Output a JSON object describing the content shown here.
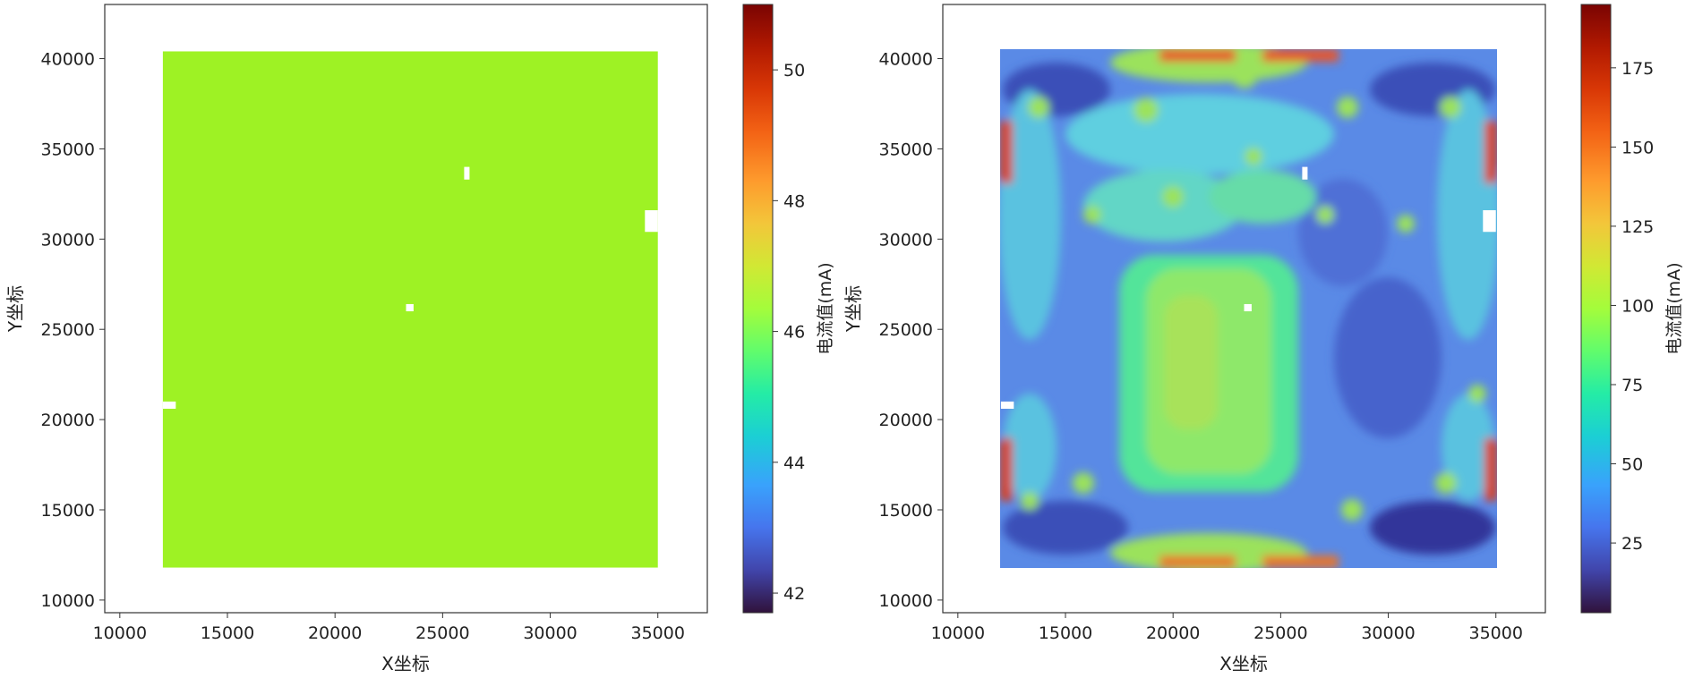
{
  "chart_data": [
    {
      "type": "heatmap",
      "title": "",
      "xlabel": "X坐标",
      "ylabel": "Y坐标",
      "xlim": [
        9300,
        37300
      ],
      "ylim": [
        9300,
        43000
      ],
      "xticks": [
        10000,
        15000,
        20000,
        25000,
        30000,
        35000
      ],
      "yticks": [
        10000,
        15000,
        20000,
        25000,
        30000,
        35000,
        40000
      ],
      "data_extent": {
        "x": [
          12000,
          35000
        ],
        "y": [
          11800,
          40400
        ]
      },
      "fill_value": 46.6,
      "fill_color": "#9ef224",
      "gaps": [
        {
          "x": [
            26000,
            26250
          ],
          "y": [
            33300,
            34000
          ]
        },
        {
          "x": [
            23300,
            23650
          ],
          "y": [
            26000,
            26400
          ]
        },
        {
          "x": [
            12000,
            12600
          ],
          "y": [
            20600,
            21000
          ]
        },
        {
          "x": [
            34400,
            35000
          ],
          "y": [
            30400,
            31600
          ]
        }
      ],
      "colorbar": {
        "label": "电流值(mA)",
        "range": [
          41.7,
          51.0
        ],
        "ticks": [
          42,
          44,
          46,
          48,
          50
        ]
      }
    },
    {
      "type": "heatmap",
      "title": "",
      "xlabel": "X坐标",
      "ylabel": "Y坐标",
      "xlim": [
        9300,
        37300
      ],
      "ylim": [
        9300,
        43000
      ],
      "xticks": [
        10000,
        15000,
        20000,
        25000,
        30000,
        35000
      ],
      "yticks": [
        10000,
        15000,
        20000,
        25000,
        30000,
        35000,
        40000
      ],
      "data_extent": {
        "x": [
          12000,
          35000
        ],
        "y": [
          11800,
          40400
        ]
      },
      "value_range": [
        3,
        195
      ],
      "gaps": [
        {
          "x": [
            26000,
            26250
          ],
          "y": [
            33300,
            34000
          ]
        },
        {
          "x": [
            23300,
            23650
          ],
          "y": [
            26000,
            26400
          ]
        },
        {
          "x": [
            12000,
            12600
          ],
          "y": [
            20600,
            21000
          ]
        },
        {
          "x": [
            34400,
            35000
          ],
          "y": [
            30400,
            31600
          ]
        }
      ],
      "colorbar": {
        "label": "电流值(mA)",
        "range": [
          3,
          195
        ],
        "ticks": [
          25,
          50,
          75,
          100,
          125,
          150,
          175
        ]
      }
    }
  ]
}
